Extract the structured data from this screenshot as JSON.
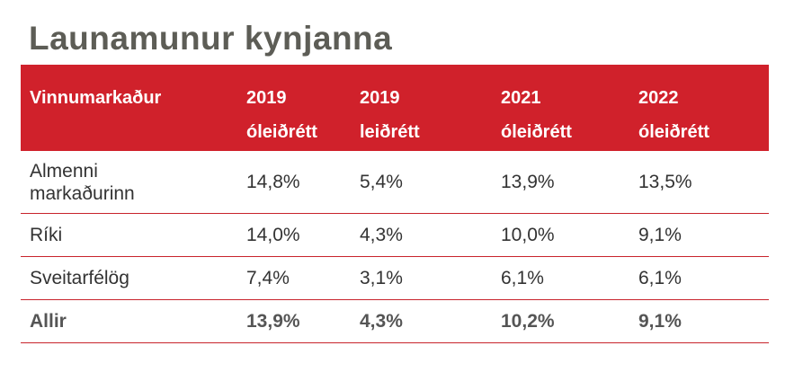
{
  "title": "Launamunur kynjanna",
  "colors": {
    "header_bg": "#d0212b",
    "title": "#5d5d56",
    "row_line": "#c8242c"
  },
  "headers": [
    {
      "line1": "Vinnumarkaður",
      "line2": ""
    },
    {
      "line1": "2019",
      "line2": "óleiðrétt"
    },
    {
      "line1": "2019",
      "line2": "leiðrétt"
    },
    {
      "line1": "2021",
      "line2": "óleiðrétt"
    },
    {
      "line1": "2022",
      "line2": "óleiðrétt"
    }
  ],
  "rows": [
    {
      "label_line1": "Almenni",
      "label_line2": "markaðurinn",
      "values": [
        "14,8%",
        "5,4%",
        "13,9%",
        "13,5%"
      ]
    },
    {
      "label_line1": "Ríki",
      "label_line2": "",
      "values": [
        "14,0%",
        "4,3%",
        "10,0%",
        "9,1%"
      ]
    },
    {
      "label_line1": "Sveitarfélög",
      "label_line2": "",
      "values": [
        "7,4%",
        "3,1%",
        "6,1%",
        "6,1%"
      ]
    },
    {
      "label_line1": "Allir",
      "label_line2": "",
      "values": [
        "13,9%",
        "4,3%",
        "10,2%",
        "9,1%"
      ]
    }
  ]
}
